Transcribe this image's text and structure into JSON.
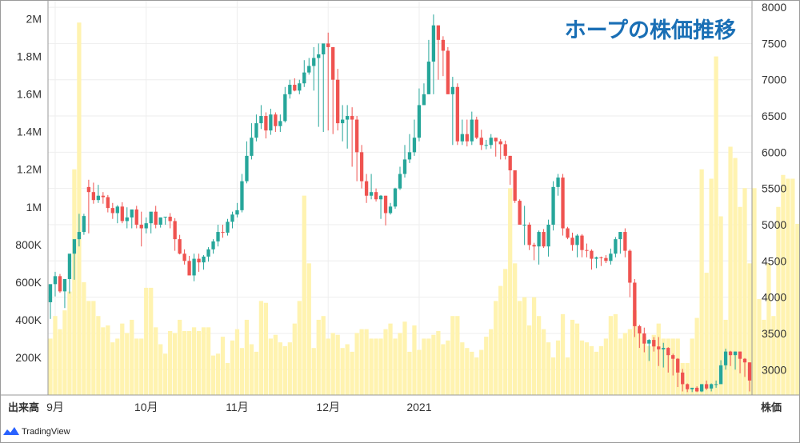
{
  "title": "ホープの株価推移",
  "brand": {
    "name": "TradingView"
  },
  "axis_corner": {
    "left": "出来高",
    "right": "株価"
  },
  "colors": {
    "up": "#26a69a",
    "down": "#ef5350",
    "volume": "#fff3b0",
    "grid": "#eeeeee",
    "title": "#1a6fb5"
  },
  "chart_data": {
    "type": "candlestick",
    "title": "ホープの株価推移",
    "x_ticks": [
      "9月",
      "10月",
      "11月",
      "12月",
      "2021"
    ],
    "y_left_ticks": [
      "200K",
      "400K",
      "600K",
      "800K",
      "1M",
      "1.2M",
      "1.4M",
      "1.6M",
      "1.8M",
      "2M"
    ],
    "y_left_values": [
      200000,
      400000,
      600000,
      800000,
      1000000,
      1200000,
      1400000,
      1600000,
      1800000,
      2000000
    ],
    "y_left_range": [
      0,
      2100000
    ],
    "y_right_ticks": [
      "3000",
      "3500",
      "4000",
      "4500",
      "5000",
      "5500",
      "6000",
      "6500",
      "7000",
      "7500",
      "8000"
    ],
    "y_right_values": [
      3000,
      3500,
      4000,
      4500,
      5000,
      5500,
      6000,
      6500,
      7000,
      7500,
      8000
    ],
    "y_right_range": [
      2650,
      8100
    ],
    "tick_days": [
      1,
      20,
      39,
      58,
      77
    ],
    "series": [
      {
        "name": "出来高",
        "type": "volume",
        "values": [
          300000,
          420000,
          350000,
          450000,
          550000,
          1200000,
          1980000,
          600000,
          500000,
          500000,
          420000,
          360000,
          370000,
          280000,
          300000,
          380000,
          330000,
          400000,
          300000,
          300000,
          570000,
          570000,
          360000,
          270000,
          220000,
          340000,
          330000,
          400000,
          340000,
          340000,
          360000,
          340000,
          360000,
          360000,
          210000,
          220000,
          310000,
          170000,
          290000,
          350000,
          250000,
          400000,
          270000,
          230000,
          500000,
          490000,
          300000,
          320000,
          280000,
          260000,
          280000,
          380000,
          500000,
          1060000,
          700000,
          250000,
          400000,
          420000,
          300000,
          330000,
          320000,
          250000,
          270000,
          230000,
          330000,
          350000,
          350000,
          300000,
          300000,
          300000,
          350000,
          380000,
          300000,
          330000,
          390000,
          230000,
          370000,
          240000,
          300000,
          300000,
          320000,
          340000,
          270000,
          290000,
          420000,
          420000,
          280000,
          250000,
          230000,
          200000,
          240000,
          310000,
          350000,
          500000,
          580000,
          670000,
          1100000,
          700000,
          500000,
          520000,
          370000,
          520000,
          420000,
          350000,
          280000,
          200000,
          290000,
          430000,
          200000,
          400000,
          380000,
          290000,
          280000,
          260000,
          230000,
          260000,
          300000,
          420000,
          430000,
          300000,
          330000,
          350000,
          450000,
          350000,
          310000,
          260000,
          320000,
          380000,
          300000,
          300000,
          300000,
          300000,
          170000,
          170000,
          300000,
          410000,
          1200000,
          650000,
          1150000,
          1800000,
          950000,
          400000,
          1320000,
          1260000,
          1000000,
          1100000,
          700000,
          1100000,
          510000,
          400000,
          700000,
          420000,
          1000000,
          1170000,
          1150000,
          1150000,
          910000,
          420000,
          300000,
          280000,
          320000,
          400000,
          850000,
          1100000,
          850000,
          1300000,
          970000,
          1150000,
          500000,
          530000,
          500000,
          1250000,
          1140000,
          700000,
          500000,
          420000,
          280000,
          660000,
          280000,
          280000,
          200000,
          200000,
          220000,
          230000,
          280000,
          220000,
          220000,
          250000
        ]
      },
      {
        "name": "株価",
        "type": "ohlc",
        "open": [
          3930,
          4180,
          4290,
          4080,
          4250,
          4600,
          4800,
          4900,
          5520,
          5450,
          5340,
          5400,
          5380,
          5230,
          5160,
          5250,
          5050,
          5100,
          5210,
          5000,
          4950,
          5020,
          5180,
          5000,
          5100,
          5110,
          5050,
          4800,
          4600,
          4500,
          4300,
          4530,
          4480,
          4560,
          4660,
          4770,
          4900,
          4890,
          5040,
          5140,
          5200,
          5600,
          5950,
          6200,
          6400,
          6500,
          6300,
          6520,
          6360,
          6430,
          6800,
          6930,
          6850,
          6950,
          7100,
          7190,
          7300,
          7350,
          7500,
          7450,
          7000,
          6400,
          6450,
          6500,
          6450,
          6000,
          5600,
          5400,
          5450,
          5350,
          5400,
          5160,
          5250,
          5500,
          5700,
          5900,
          6000,
          6200,
          6650,
          6800,
          7250,
          7750,
          7550,
          7400,
          6800,
          6900,
          6150,
          6250,
          6150,
          6450,
          6200,
          6100,
          6100,
          6200,
          6150,
          6110,
          5950,
          5750,
          5330,
          5000,
          5000,
          4720,
          4700,
          4900,
          4700,
          5000,
          5520,
          5650,
          4950,
          4820,
          4720,
          4850,
          4650,
          4640,
          4530,
          4550,
          4540,
          4500,
          4600,
          4800,
          4900,
          4640,
          4200,
          3600,
          3500,
          3360,
          3410,
          3320,
          3280,
          3300,
          3200,
          3150,
          2960,
          2800,
          2730,
          2750,
          2700,
          2800,
          2740,
          2800,
          2800,
          3060,
          3250,
          3200,
          3250,
          3150,
          3100
        ],
        "high": [
          4150,
          4350,
          4320,
          4150,
          4500,
          4750,
          5150,
          5150,
          5620,
          5580,
          5550,
          5450,
          5410,
          5300,
          5270,
          5310,
          5240,
          5200,
          5260,
          5180,
          5100,
          5120,
          5260,
          5100,
          5110,
          5160,
          5090,
          4860,
          4660,
          4570,
          4600,
          4600,
          4580,
          4690,
          4800,
          5000,
          5000,
          5080,
          5180,
          5300,
          5700,
          6150,
          6400,
          6520,
          6650,
          6550,
          6600,
          6550,
          6520,
          6900,
          7000,
          7020,
          7000,
          7270,
          7300,
          7450,
          7500,
          7450,
          7650,
          7450,
          7150,
          6650,
          6650,
          6620,
          6500,
          6100,
          5700,
          5700,
          5500,
          5410,
          5400,
          5300,
          5510,
          5800,
          6100,
          6250,
          6450,
          6880,
          6950,
          7550,
          7900,
          7750,
          7600,
          7450,
          7040,
          6950,
          6450,
          6450,
          6560,
          6490,
          6310,
          6170,
          6250,
          6200,
          6180,
          6160,
          5950,
          5750,
          5350,
          5260,
          5030,
          4750,
          4920,
          4940,
          5070,
          5600,
          5700,
          5700,
          4970,
          4890,
          4870,
          4870,
          4740,
          4660,
          4560,
          4560,
          4580,
          4670,
          4830,
          4900,
          4950,
          4660,
          4250,
          3620,
          3580,
          3420,
          3450,
          3450,
          3370,
          3310,
          3220,
          3160,
          3010,
          2810,
          2750,
          2770,
          2800,
          2850,
          2810,
          2850,
          3130,
          3290,
          3260,
          3250,
          3250,
          3160,
          3100
        ],
        "low": [
          3700,
          4010,
          4060,
          3850,
          4050,
          4240,
          4700,
          4860,
          4880,
          5290,
          5300,
          5290,
          5170,
          5080,
          5020,
          5020,
          4950,
          4950,
          4950,
          4700,
          4880,
          4880,
          4950,
          4960,
          5000,
          4950,
          4640,
          4590,
          4450,
          4310,
          4220,
          4350,
          4380,
          4490,
          4600,
          4700,
          4820,
          4850,
          4950,
          5100,
          5170,
          5570,
          5900,
          6150,
          6320,
          6190,
          6240,
          6280,
          6280,
          6410,
          6740,
          6840,
          6800,
          6900,
          7070,
          6850,
          6350,
          6280,
          6300,
          6250,
          6300,
          6150,
          6050,
          5800,
          5600,
          5500,
          5300,
          5350,
          5320,
          5080,
          4990,
          5140,
          5220,
          5480,
          5650,
          5850,
          5950,
          6150,
          6650,
          6800,
          6800,
          7000,
          7050,
          6800,
          6100,
          6100,
          6100,
          6080,
          6100,
          6180,
          6030,
          6040,
          6050,
          5940,
          5900,
          5900,
          5550,
          5300,
          5020,
          4720,
          4650,
          4510,
          4450,
          4680,
          4560,
          4920,
          5400,
          4850,
          4800,
          4640,
          4550,
          4550,
          4550,
          4380,
          4400,
          4430,
          4470,
          4450,
          4550,
          4600,
          4550,
          4000,
          3450,
          3300,
          3240,
          3120,
          3250,
          3050,
          3030,
          2960,
          2920,
          2760,
          2700,
          2690,
          2690,
          2690,
          2690,
          2720,
          2700,
          2750,
          2830,
          3000,
          3050,
          3000,
          2950,
          2900,
          2700
        ],
        "close": [
          4180,
          4290,
          4080,
          4250,
          4600,
          4800,
          4900,
          5120,
          5450,
          5340,
          5400,
          5380,
          5230,
          5160,
          5250,
          5050,
          5100,
          5210,
          5000,
          4950,
          5020,
          5180,
          5000,
          5100,
          5110,
          5050,
          4800,
          4600,
          4500,
          4300,
          4530,
          4480,
          4560,
          4660,
          4770,
          4900,
          4890,
          5040,
          5140,
          5200,
          5600,
          5950,
          6200,
          6400,
          6500,
          6300,
          6520,
          6360,
          6430,
          6800,
          6930,
          6850,
          6950,
          7100,
          7190,
          7300,
          7350,
          7500,
          7450,
          7000,
          6400,
          6450,
          6500,
          6450,
          6000,
          5600,
          5400,
          5450,
          5350,
          5400,
          5160,
          5250,
          5500,
          5700,
          5900,
          6000,
          6200,
          6650,
          6800,
          7250,
          7750,
          7550,
          7400,
          6800,
          6900,
          6150,
          6250,
          6150,
          6450,
          6200,
          6100,
          6100,
          6200,
          6150,
          6110,
          5950,
          5750,
          5330,
          5000,
          5000,
          4720,
          4700,
          4900,
          4700,
          5000,
          5520,
          5650,
          4950,
          4820,
          4720,
          4850,
          4650,
          4640,
          4530,
          4550,
          4540,
          4500,
          4600,
          4800,
          4900,
          4640,
          4200,
          3600,
          3500,
          3360,
          3410,
          3320,
          3280,
          3300,
          3200,
          3150,
          2960,
          2800,
          2730,
          2750,
          2700,
          2800,
          2740,
          2800,
          2800,
          3060,
          3250,
          3200,
          3250,
          3150,
          3100,
          2850
        ]
      }
    ]
  }
}
